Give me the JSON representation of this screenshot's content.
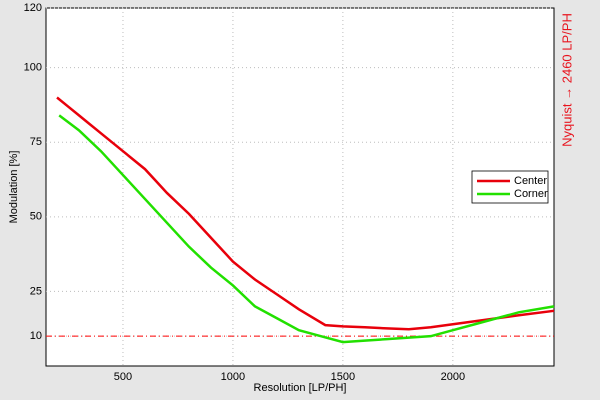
{
  "chart_data": {
    "type": "line",
    "xlabel": "Resolution [LP/PH]",
    "ylabel": "Modulation [%]",
    "annotation": "Nyquist → 2460 LP/PH",
    "annotation_color": "#e8141e",
    "reference_line": {
      "value": 10,
      "color": "#ff0000"
    },
    "xlim": [
      150,
      2460
    ],
    "xticks": [
      500,
      1000,
      1500,
      2000
    ],
    "ylim": [
      0,
      120
    ],
    "yticks": [
      10,
      25,
      50,
      75,
      100,
      120
    ],
    "grid": true,
    "legend": "right",
    "series": [
      {
        "name": "Center",
        "color": "#e8000b",
        "x": [
          200,
          250,
          300,
          350,
          400,
          500,
          600,
          650,
          700,
          800,
          900,
          1000,
          1100,
          1200,
          1300,
          1420,
          1500,
          1600,
          1700,
          1800,
          1900,
          2000,
          2100,
          2200,
          2300,
          2460
        ],
        "values": [
          90,
          87,
          84,
          81,
          78,
          72,
          66,
          62,
          58,
          51,
          43,
          35,
          29,
          24,
          19,
          13.7,
          13.3,
          13,
          12.6,
          12.3,
          13,
          14,
          15,
          16,
          17,
          18.5
        ]
      },
      {
        "name": "Corner",
        "color": "#22e000",
        "x": [
          210,
          300,
          400,
          500,
          600,
          700,
          800,
          900,
          1000,
          1100,
          1200,
          1300,
          1400,
          1500,
          1600,
          1700,
          1800,
          1900,
          2000,
          2100,
          2200,
          2300,
          2460
        ],
        "values": [
          84,
          79,
          72,
          64,
          56,
          48,
          40,
          33,
          27,
          20,
          16,
          12,
          10,
          8,
          8.5,
          9,
          9.5,
          10,
          12,
          14,
          16,
          18,
          20
        ]
      }
    ]
  }
}
